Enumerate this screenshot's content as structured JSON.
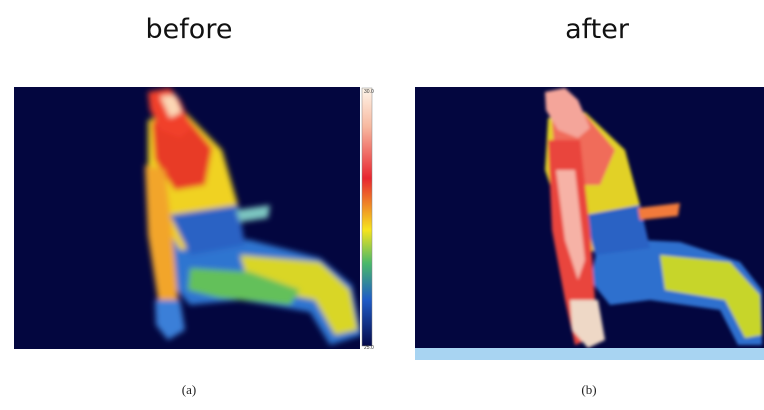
{
  "panels": [
    {
      "title": "before",
      "label": "(a)",
      "scale": {
        "max": "30.0",
        "min": "25.0"
      }
    },
    {
      "title": "after",
      "label": "(b)"
    }
  ]
}
